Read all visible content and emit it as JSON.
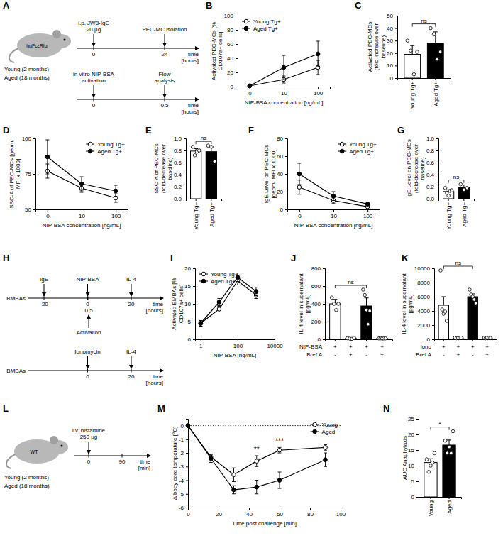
{
  "chart_data": [
    {
      "panel": "B",
      "type": "line",
      "categories": [
        "0",
        "10",
        "100"
      ],
      "x_label": "NIP-BSA concentration [ng/mL]",
      "y_label": "Activated PEC-MCs [% CD107a+ cells]",
      "ylim": [
        0,
        100
      ],
      "yticks": [
        0,
        20,
        40,
        60,
        80,
        100
      ],
      "legend": "top-left",
      "series": [
        {
          "name": "Young Tg+",
          "color": "#000000",
          "marker": "open-circle",
          "values": [
            1,
            10,
            27
          ],
          "errors": [
            0.5,
            5,
            10
          ]
        },
        {
          "name": "Aged Tg+",
          "color": "#000000",
          "marker": "circle",
          "values": [
            1,
            27,
            46
          ],
          "errors": [
            0.5,
            17,
            18
          ]
        }
      ]
    },
    {
      "panel": "C",
      "type": "bar",
      "categories": [
        "Young Tg+",
        "Aged Tg+"
      ],
      "y_label": "Activated PEC-MCs (fold-increase over baseline)",
      "ylim": [
        0,
        50
      ],
      "yticks": [
        0,
        10,
        20,
        30,
        40,
        50
      ],
      "colors": [
        "#ffffff",
        "#000000"
      ],
      "values": [
        19,
        28
      ],
      "errors": [
        7,
        9
      ],
      "points": [
        [
          30,
          22,
          3,
          21
        ],
        [
          40,
          35,
          15,
          21
        ]
      ],
      "annotations": [
        {
          "text": "ns",
          "between": [
            0,
            1
          ]
        }
      ]
    },
    {
      "panel": "D",
      "type": "line",
      "categories": [
        "0",
        "10",
        "100"
      ],
      "x_label": "NIP-BSA concentration [ng/mL]",
      "y_label": "SSC-A of PEC-MCs [geom. MFI x 1000]",
      "ylim": [
        50,
        100
      ],
      "yticks": [
        50,
        75,
        100
      ],
      "legend": "top-right",
      "series": [
        {
          "name": "Young Tg+",
          "color": "#000000",
          "marker": "open-circle",
          "values": [
            77,
            65,
            58
          ],
          "errors": [
            5,
            3,
            3
          ]
        },
        {
          "name": "Aged Tg+",
          "color": "#000000",
          "marker": "circle",
          "values": [
            87,
            68,
            63
          ],
          "errors": [
            12,
            5,
            4
          ]
        }
      ]
    },
    {
      "panel": "E",
      "type": "bar",
      "categories": [
        "Young Tg+",
        "Aged Tg+"
      ],
      "y_label": "SSC-A of PEC-MCs (fold-decrease over baseline)",
      "ylim": [
        0,
        1
      ],
      "yticks": [
        {
          "value": 0,
          "label": "0.0"
        },
        0.2,
        0.4,
        0.6,
        0.8,
        {
          "value": 1,
          "label": "1.0"
        }
      ],
      "colors": [
        "#ffffff",
        "#000000"
      ],
      "values": [
        0.79,
        0.78
      ],
      "errors": [
        0.04,
        0.08
      ],
      "points": [
        [
          0.86,
          0.72,
          0.78,
          0.8
        ],
        [
          0.88,
          0.86,
          0.62
        ]
      ],
      "annotations": [
        {
          "text": "ns",
          "between": [
            0,
            1
          ]
        }
      ]
    },
    {
      "panel": "F",
      "type": "line",
      "categories": [
        "0",
        "10",
        "100"
      ],
      "x_label": "NIP-BSA concentration [ng/mL]",
      "y_label": "IgE Level on PEC-MCs [geom. MFI x 1000]",
      "ylim": [
        0,
        80
      ],
      "yticks": [
        0,
        20,
        40,
        60,
        80
      ],
      "legend": "top-right",
      "series": [
        {
          "name": "Young Tg+",
          "color": "#000000",
          "marker": "open-circle",
          "values": [
            25,
            10,
            3
          ],
          "errors": [
            8,
            3,
            1
          ]
        },
        {
          "name": "Aged Tg+",
          "color": "#000000",
          "marker": "circle",
          "values": [
            40,
            15,
            6
          ],
          "errors": [
            12,
            5,
            2
          ]
        }
      ]
    },
    {
      "panel": "G",
      "type": "bar",
      "categories": [
        "Young Tg+",
        "Aged Tg+"
      ],
      "y_label": "IgE Level on PEC-MCs (fold-decrease over baseline)",
      "ylim": [
        0,
        1
      ],
      "yticks": [
        {
          "value": 0,
          "label": "0.0"
        },
        0.2,
        0.4,
        0.6,
        0.8,
        {
          "value": 1,
          "label": "1.0"
        }
      ],
      "colors": [
        "#ffffff",
        "#000000"
      ],
      "values": [
        0.12,
        0.19
      ],
      "errors": [
        0.03,
        0.04
      ],
      "points": [
        [
          0.18,
          0.1,
          0.05,
          0.13,
          0.14
        ],
        [
          0.24,
          0.15,
          0.18
        ]
      ],
      "annotations": [
        {
          "text": "ns",
          "between": [
            0,
            1
          ]
        }
      ]
    },
    {
      "panel": "I",
      "type": "line",
      "x": [
        1,
        10,
        100,
        1000
      ],
      "xlim": [
        0.5,
        10000
      ],
      "xticks": [
        1,
        100,
        10000
      ],
      "log": "x",
      "x_label": "NIP-BSA [ng/mL]",
      "y_label": "Activated BMBAs [% CD107a+ cells]",
      "ylim": [
        0,
        20
      ],
      "yticks": [
        0,
        5,
        10,
        15,
        20
      ],
      "legend": "top-left",
      "series": [
        {
          "name": "Young Tg+",
          "color": "#000000",
          "marker": "open-circle",
          "values": [
            4.5,
            8.5,
            16.5,
            12.5
          ],
          "errors": [
            0.8,
            0.8,
            1.2,
            1
          ]
        },
        {
          "name": "Aged Tg+",
          "color": "#000000",
          "marker": "circle",
          "values": [
            4.5,
            10.5,
            17.5,
            13.5
          ],
          "errors": [
            0.8,
            1,
            1.2,
            1.2
          ]
        }
      ]
    },
    {
      "panel": "J",
      "type": "bar",
      "categories": [
        null,
        null,
        null,
        null
      ],
      "conditions": [
        {
          "label": "NIP-BSA",
          "values": [
            "+",
            "+",
            "+",
            "+"
          ]
        },
        {
          "label": "Bref A",
          "values": [
            "-",
            "+",
            "-",
            "+"
          ]
        }
      ],
      "y_label": "IL-4 level in supernatant [pg/mL]",
      "ylim": [
        0,
        800
      ],
      "yticks": [
        0,
        200,
        400,
        600,
        800
      ],
      "colors": [
        "#ffffff",
        "#ffffff",
        "#000000",
        "#000000"
      ],
      "values": [
        400,
        10,
        376,
        10
      ],
      "errors": [
        50,
        3,
        90,
        3
      ],
      "points": [
        [
          470,
          400,
          330,
          400
        ],
        [
          12,
          8,
          5,
          15
        ],
        [
          560,
          500,
          330,
          170,
          320
        ],
        [
          10,
          12,
          8,
          10,
          10
        ]
      ],
      "annotations": [
        {
          "text": "ns",
          "between": [
            0,
            2
          ]
        }
      ]
    },
    {
      "panel": "K",
      "type": "bar",
      "categories": [
        null,
        null,
        null,
        null
      ],
      "conditions": [
        {
          "label": "Iono",
          "values": [
            "+",
            "+",
            "+",
            "+"
          ]
        },
        {
          "label": "Bref A",
          "values": [
            "-",
            "+",
            "-",
            "+"
          ]
        }
      ],
      "y_label": "IL-4 level in supernatant [pg/mL]",
      "ylim": [
        0,
        10000
      ],
      "yticks": [
        0,
        2000,
        4000,
        6000,
        8000,
        10000
      ],
      "colors": [
        "#ffffff",
        "#ffffff",
        "#000000",
        "#000000"
      ],
      "values": [
        4800,
        200,
        6000,
        200
      ],
      "errors": [
        1200,
        40,
        400,
        40
      ],
      "points": [
        [
          9700,
          4200,
          3600,
          3900,
          2600
        ],
        [
          250,
          150,
          200,
          180,
          220
        ],
        [
          7000,
          6300,
          6000,
          5600,
          5100
        ],
        [
          200,
          150,
          250,
          200,
          200
        ]
      ],
      "annotations": [
        {
          "text": "ns",
          "between": [
            0,
            2
          ]
        }
      ]
    },
    {
      "panel": "M",
      "type": "line",
      "x": [
        0,
        15,
        30,
        45,
        60,
        90
      ],
      "xlim": [
        0,
        100
      ],
      "xticks": [
        0,
        20,
        40,
        60,
        80,
        100
      ],
      "x_label": "Time post challenge [min]",
      "y_label": "Δ body core temperature [°C]",
      "ylim": [
        -6,
        0.5
      ],
      "yticks": [
        0,
        -1,
        -2,
        -3,
        -4,
        -5,
        -6
      ],
      "legend": "top-right",
      "series": [
        {
          "name": "Young",
          "color": "#000000",
          "marker": "open-circle",
          "values": [
            0,
            -2.3,
            -3.6,
            -2.6,
            -1.8,
            -1.6
          ],
          "errors": [
            0,
            0.2,
            0.5,
            0.4,
            0.2,
            0.2
          ]
        },
        {
          "name": "Aged",
          "color": "#000000",
          "marker": "circle",
          "values": [
            0,
            -2.4,
            -4.7,
            -4.5,
            -4,
            -2.5
          ],
          "errors": [
            0,
            0.3,
            0.3,
            0.5,
            0.6,
            0.5
          ]
        }
      ],
      "annotations": [
        {
          "text": "**",
          "x": 45
        },
        {
          "text": "***",
          "x": 60
        },
        {
          "y": 0,
          "line_style": "dotted"
        }
      ]
    },
    {
      "panel": "N",
      "type": "bar",
      "categories": [
        "Young",
        "Aged"
      ],
      "y_label": "AUC Anaphylaxis",
      "ylim": [
        0,
        25
      ],
      "yticks": [
        0,
        5,
        10,
        15,
        20,
        25
      ],
      "colors": [
        "#ffffff",
        "#000000"
      ],
      "values": [
        11,
        16.6
      ],
      "errors": [
        1.2,
        1.6
      ],
      "points": [
        [
          12,
          8,
          10,
          11,
          14
        ],
        [
          18,
          14,
          16,
          14,
          21
        ]
      ],
      "annotations": [
        {
          "text": "*",
          "between": [
            0,
            1
          ]
        }
      ]
    }
  ],
  "diagrams": [
    {
      "panel": "A",
      "mouse_label": "huFcεRIα",
      "groups": [
        "Young (2 months)",
        "Aged (18 months)"
      ],
      "timelines": [
        {
          "range": [
            0,
            24
          ],
          "ticks": [
            0,
            24
          ],
          "unit": [
            "time",
            "[hours]"
          ],
          "events": [
            {
              "at": 0,
              "label": [
                "i.p. JW8-IgE",
                "20 µg"
              ]
            },
            {
              "at": 24,
              "label": [
                "PEC-MC isolation"
              ]
            }
          ]
        },
        {
          "range": [
            0,
            0.5
          ],
          "ticks": [
            0,
            0.5
          ],
          "unit": [
            "time",
            "[hours]"
          ],
          "events": [
            {
              "at": 0,
              "label": [
                "in vitro NIP-BSA",
                "activation"
              ]
            },
            {
              "at": 0.5,
              "label": [
                "Flow",
                "analysis"
              ]
            }
          ]
        }
      ]
    },
    {
      "panel": "H",
      "timelines": [
        {
          "subject": "BMBAs",
          "range": [
            -20,
            20
          ],
          "ticks": [
            -20,
            0,
            0.5,
            20
          ],
          "unit": [
            "time",
            "[hours]"
          ],
          "events": [
            {
              "at": -20,
              "label": [
                "IgE"
              ]
            },
            {
              "at": 0,
              "label": [
                "NIP-BSA"
              ]
            },
            {
              "at": 0.5,
              "label": [
                "Activaiton"
              ],
              "below": true
            },
            {
              "at": 20,
              "label": [
                "IL-4"
              ]
            }
          ]
        },
        {
          "subject": "BMBAs",
          "range": [
            -20,
            20
          ],
          "ticks": [
            0,
            20
          ],
          "unit": [
            "time",
            "[hours]"
          ],
          "events": [
            {
              "at": 0,
              "label": [
                "Ionomycin"
              ]
            },
            {
              "at": 20,
              "label": [
                "IL-4"
              ]
            }
          ]
        }
      ]
    },
    {
      "panel": "L",
      "mouse_label": "WT",
      "groups": [
        "Young (2 months)",
        "Aged (18 months)"
      ],
      "timelines": [
        {
          "range": [
            0,
            90
          ],
          "ticks": [
            0,
            90
          ],
          "unit": [
            "time",
            "[min]"
          ],
          "events": [
            {
              "at": 0,
              "label": [
                "i.v. histamine",
                "250 µg"
              ]
            }
          ]
        }
      ]
    }
  ]
}
